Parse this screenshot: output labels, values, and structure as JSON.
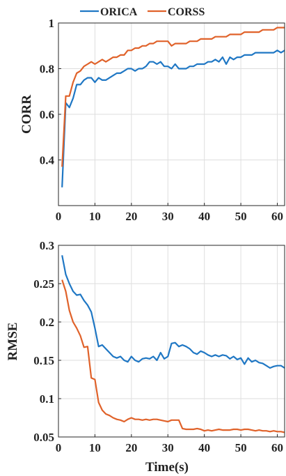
{
  "colors": {
    "ORICA": "#1f77c4",
    "CORSS": "#e0622a"
  },
  "legend": {
    "placement": "top",
    "entries": [
      "ORICA",
      "CORSS"
    ]
  },
  "chart_data": [
    {
      "type": "line",
      "xlabel": "",
      "ylabel": "CORR",
      "xlim": [
        0,
        62
      ],
      "ylim": [
        0.2,
        1.0
      ],
      "xticks": [
        "0",
        "10",
        "20",
        "30",
        "40",
        "50",
        "60"
      ],
      "yticks": [
        "0.4",
        "0.6",
        "0.8",
        "1"
      ],
      "ytick_values": [
        0.4,
        0.6,
        0.8,
        1.0
      ],
      "grid": true,
      "x": [
        1,
        2,
        3,
        4,
        5,
        6,
        7,
        8,
        9,
        10,
        11,
        12,
        13,
        14,
        15,
        16,
        17,
        18,
        19,
        20,
        21,
        22,
        23,
        24,
        25,
        26,
        27,
        28,
        29,
        30,
        31,
        32,
        33,
        34,
        35,
        36,
        37,
        38,
        39,
        40,
        41,
        42,
        43,
        44,
        45,
        46,
        47,
        48,
        49,
        50,
        51,
        52,
        53,
        54,
        55,
        56,
        57,
        58,
        59,
        60,
        61,
        62
      ],
      "series": [
        {
          "name": "ORICA",
          "values": [
            0.28,
            0.65,
            0.63,
            0.67,
            0.73,
            0.73,
            0.75,
            0.76,
            0.76,
            0.74,
            0.76,
            0.75,
            0.75,
            0.76,
            0.77,
            0.78,
            0.78,
            0.79,
            0.8,
            0.8,
            0.79,
            0.8,
            0.8,
            0.81,
            0.83,
            0.83,
            0.82,
            0.83,
            0.81,
            0.81,
            0.8,
            0.82,
            0.8,
            0.8,
            0.8,
            0.81,
            0.81,
            0.82,
            0.82,
            0.82,
            0.83,
            0.83,
            0.84,
            0.83,
            0.85,
            0.82,
            0.85,
            0.84,
            0.85,
            0.85,
            0.86,
            0.86,
            0.86,
            0.87,
            0.87,
            0.87,
            0.87,
            0.87,
            0.87,
            0.88,
            0.87,
            0.88
          ]
        },
        {
          "name": "CORSS",
          "values": [
            0.37,
            0.68,
            0.68,
            0.74,
            0.78,
            0.79,
            0.81,
            0.82,
            0.83,
            0.82,
            0.83,
            0.84,
            0.83,
            0.84,
            0.85,
            0.85,
            0.86,
            0.86,
            0.88,
            0.88,
            0.89,
            0.89,
            0.9,
            0.9,
            0.91,
            0.91,
            0.92,
            0.92,
            0.92,
            0.92,
            0.9,
            0.91,
            0.91,
            0.91,
            0.91,
            0.92,
            0.92,
            0.92,
            0.93,
            0.93,
            0.93,
            0.93,
            0.94,
            0.94,
            0.94,
            0.94,
            0.95,
            0.95,
            0.95,
            0.95,
            0.96,
            0.96,
            0.96,
            0.96,
            0.96,
            0.97,
            0.97,
            0.97,
            0.97,
            0.98,
            0.98,
            0.98
          ]
        }
      ]
    },
    {
      "type": "line",
      "xlabel": "Time(s)",
      "ylabel": "RMSE",
      "xlim": [
        0,
        62
      ],
      "ylim": [
        0.05,
        0.3
      ],
      "xticks": [
        "0",
        "10",
        "20",
        "30",
        "40",
        "50",
        "60"
      ],
      "yticks": [
        "0.05",
        "0.1",
        "0.15",
        "0.2",
        "0.25",
        "0.3"
      ],
      "ytick_values": [
        0.05,
        0.1,
        0.15,
        0.2,
        0.25,
        0.3
      ],
      "grid": true,
      "x": [
        1,
        2,
        3,
        4,
        5,
        6,
        7,
        8,
        9,
        10,
        11,
        12,
        13,
        14,
        15,
        16,
        17,
        18,
        19,
        20,
        21,
        22,
        23,
        24,
        25,
        26,
        27,
        28,
        29,
        30,
        31,
        32,
        33,
        34,
        35,
        36,
        37,
        38,
        39,
        40,
        41,
        42,
        43,
        44,
        45,
        46,
        47,
        48,
        49,
        50,
        51,
        52,
        53,
        54,
        55,
        56,
        57,
        58,
        59,
        60,
        61,
        62
      ],
      "series": [
        {
          "name": "ORICA",
          "values": [
            0.287,
            0.262,
            0.25,
            0.24,
            0.235,
            0.236,
            0.228,
            0.222,
            0.213,
            0.192,
            0.168,
            0.17,
            0.165,
            0.16,
            0.155,
            0.153,
            0.155,
            0.15,
            0.148,
            0.155,
            0.15,
            0.148,
            0.152,
            0.153,
            0.152,
            0.155,
            0.15,
            0.16,
            0.152,
            0.155,
            0.172,
            0.173,
            0.168,
            0.17,
            0.168,
            0.165,
            0.16,
            0.158,
            0.162,
            0.16,
            0.157,
            0.155,
            0.157,
            0.155,
            0.157,
            0.156,
            0.152,
            0.155,
            0.151,
            0.153,
            0.145,
            0.153,
            0.148,
            0.15,
            0.147,
            0.146,
            0.143,
            0.14,
            0.142,
            0.143,
            0.143,
            0.14
          ]
        },
        {
          "name": "CORSS",
          "values": [
            0.255,
            0.24,
            0.215,
            0.2,
            0.192,
            0.182,
            0.167,
            0.168,
            0.127,
            0.125,
            0.095,
            0.085,
            0.08,
            0.078,
            0.075,
            0.073,
            0.072,
            0.07,
            0.073,
            0.075,
            0.073,
            0.073,
            0.072,
            0.073,
            0.072,
            0.073,
            0.073,
            0.072,
            0.071,
            0.07,
            0.072,
            0.072,
            0.072,
            0.061,
            0.06,
            0.06,
            0.06,
            0.061,
            0.06,
            0.058,
            0.059,
            0.058,
            0.059,
            0.06,
            0.059,
            0.059,
            0.059,
            0.06,
            0.06,
            0.059,
            0.06,
            0.06,
            0.059,
            0.058,
            0.059,
            0.058,
            0.058,
            0.057,
            0.058,
            0.057,
            0.057,
            0.056
          ]
        }
      ]
    }
  ]
}
